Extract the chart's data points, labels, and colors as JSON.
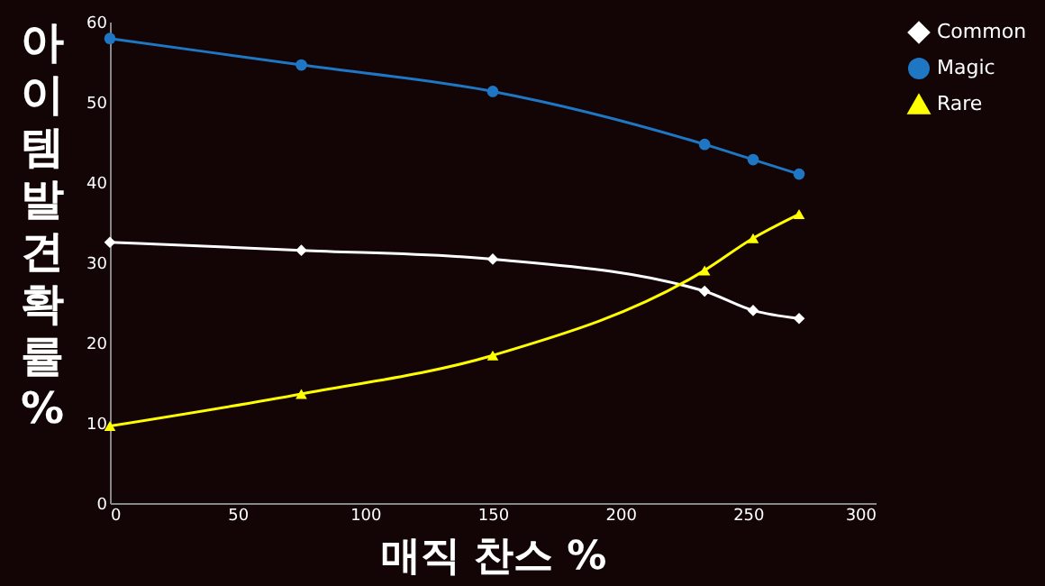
{
  "chart_data": {
    "type": "line",
    "xlabel": "매직 찬스 %",
    "ylabel": "아이템발견확률%",
    "x": [
      0,
      75,
      150,
      233,
      252,
      270
    ],
    "series": [
      {
        "name": "Common",
        "color": "#ffffff",
        "marker": "diamond",
        "values": [
          32.5,
          31.5,
          30.4,
          26.4,
          24,
          23
        ]
      },
      {
        "name": "Magic",
        "color": "#1f77c4",
        "marker": "circle",
        "values": [
          57.9,
          54.6,
          51.3,
          44.7,
          42.8,
          41
        ]
      },
      {
        "name": "Rare",
        "color": "#ffff00",
        "marker": "triangle",
        "values": [
          9.6,
          13.6,
          18.4,
          29,
          33,
          36
        ]
      }
    ],
    "xlim": [
      0,
      300
    ],
    "xticks": [
      0,
      50,
      100,
      150,
      200,
      250,
      300
    ],
    "ylim": [
      0,
      60
    ],
    "yticks": [
      0,
      10,
      20,
      30,
      40,
      50,
      60
    ],
    "grid": false,
    "legend": "right"
  }
}
